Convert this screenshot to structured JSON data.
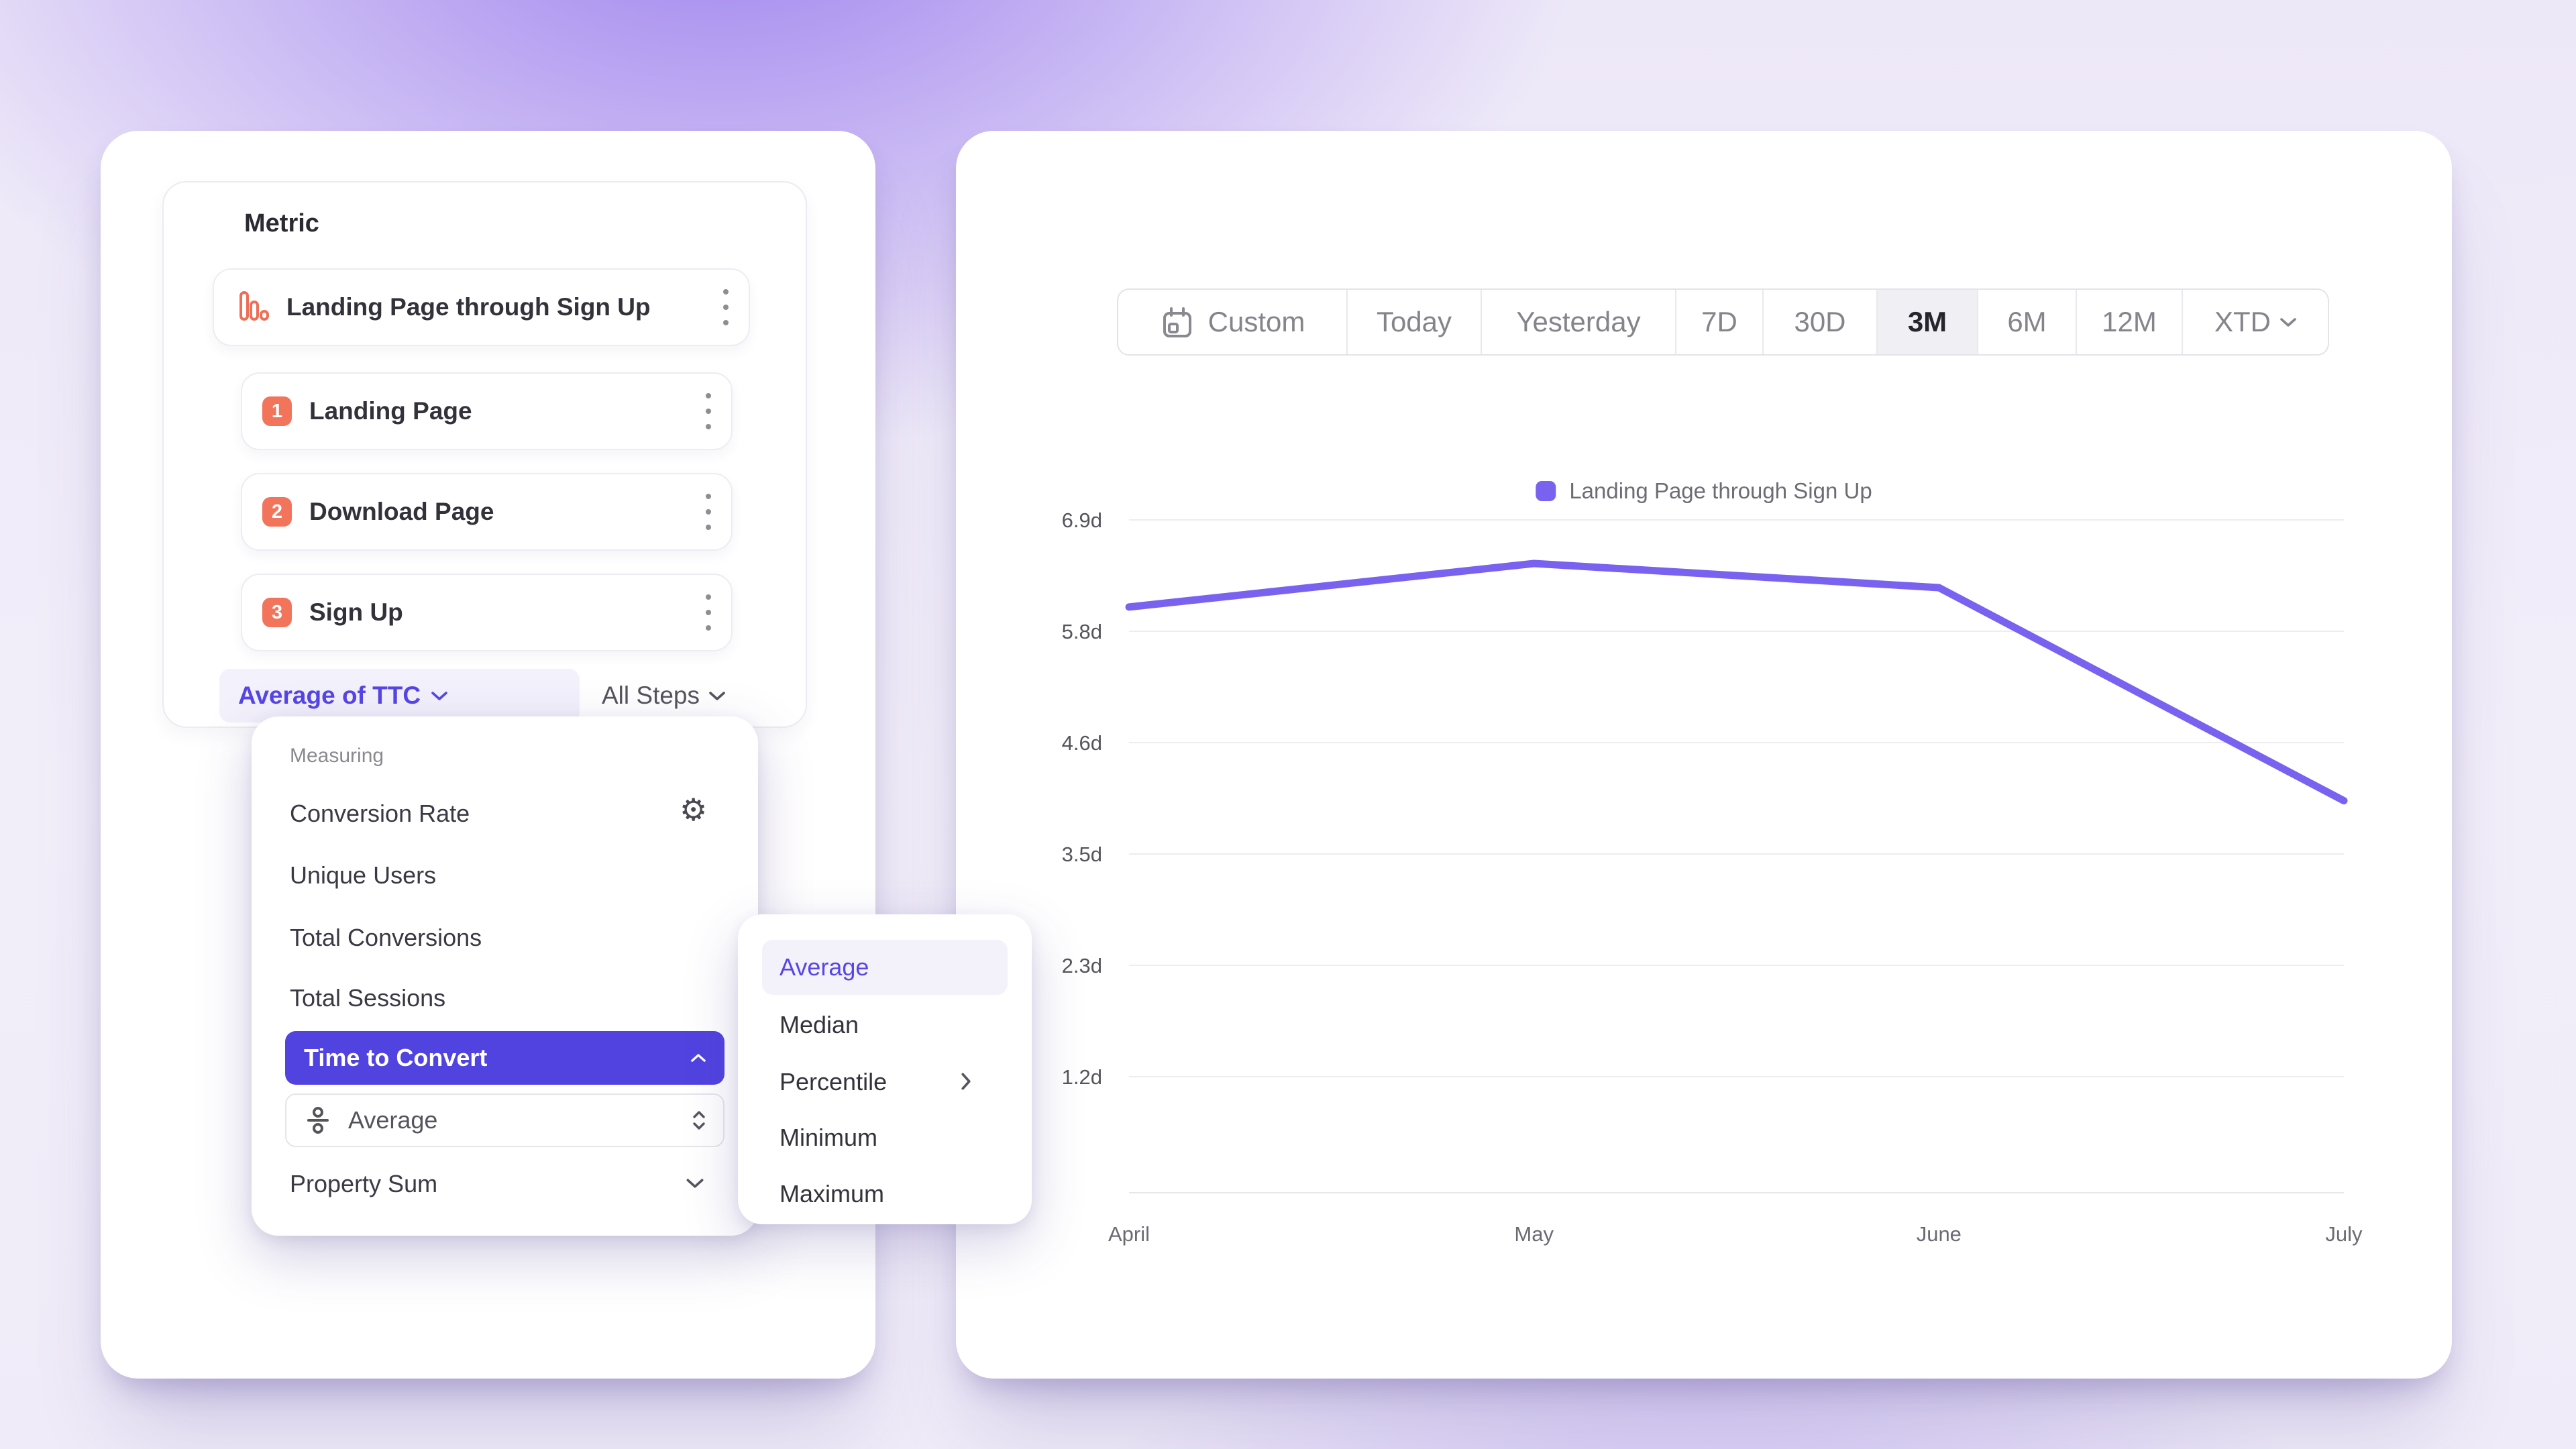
{
  "colors": {
    "accent_purple": "#5646E5",
    "selected_button_purple": "#5143E0",
    "line_purple": "#7A62F0",
    "badge_orange": "#F2745B"
  },
  "icons": {
    "gear": "⚙"
  },
  "left_panel": {
    "title": "Metric",
    "funnel": {
      "name": "Landing Page through Sign Up"
    },
    "steps": [
      {
        "number": "1",
        "label": "Landing Page"
      },
      {
        "number": "2",
        "label": "Download Page"
      },
      {
        "number": "3",
        "label": "Sign Up"
      }
    ],
    "measurement_dropdown": "Average of TTC",
    "steps_dropdown": "All Steps"
  },
  "measuring_menu": {
    "header": "Measuring",
    "conversion_rate": "Conversion Rate",
    "unique_users": "Unique Users",
    "total_conversions": "Total Conversions",
    "total_sessions": "Total Sessions",
    "time_to_convert": "Time to Convert",
    "ttc_aggregation": "Average",
    "property_sum": "Property Sum",
    "selected": "Time to Convert"
  },
  "aggregation_submenu": {
    "items": [
      "Average",
      "Median",
      "Percentile",
      "Minimum",
      "Maximum"
    ],
    "selected": "Average"
  },
  "date_range": {
    "options": [
      "Custom",
      "Today",
      "Yesterday",
      "7D",
      "30D",
      "3M",
      "6M",
      "12M",
      "XTD"
    ],
    "selected": "3M"
  },
  "chart_data": {
    "type": "line",
    "title": "",
    "xlabel": "",
    "ylabel": "",
    "x": [
      "April",
      "May",
      "June",
      "July"
    ],
    "series": [
      {
        "name": "Landing Page through Sign Up",
        "values": [
          6.0,
          6.45,
          6.2,
          4.0
        ],
        "color": "#7A62F0",
        "unit": "days"
      }
    ],
    "y_axis": {
      "top_value": 6.9,
      "step": 1.15,
      "tick_labels": [
        "6.9d",
        "5.8d",
        "4.6d",
        "3.5d",
        "2.3d",
        "1.2d"
      ]
    },
    "grid": true,
    "legend_position": "top-center"
  }
}
